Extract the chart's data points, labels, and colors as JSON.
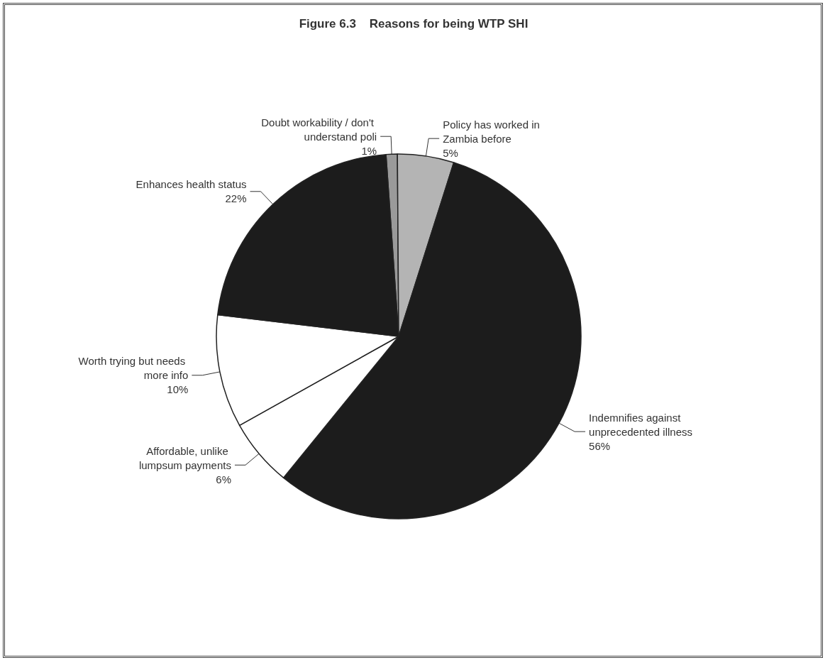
{
  "chart_data": {
    "type": "pie",
    "title": "Figure 6.3    Reasons for being WTP SHI",
    "categories": [
      "Doubt workability / don't understand poli",
      "Policy has worked in Zambia before",
      "Indemnifies against unprecedented illness",
      "Affordable, unlike lumpsum payments",
      "Worth trying but needs more info",
      "Enhances health status"
    ],
    "values": [
      1,
      5,
      56,
      6,
      10,
      22
    ],
    "value_labels": [
      "1%",
      "5%",
      "56%",
      "6%",
      "10%",
      "22%"
    ],
    "colors": [
      "#9a9a9a",
      "#b4b4b4",
      "#1c1c1c",
      "#ffffff",
      "#ffffff",
      "#1c1c1c"
    ],
    "legend": false
  }
}
